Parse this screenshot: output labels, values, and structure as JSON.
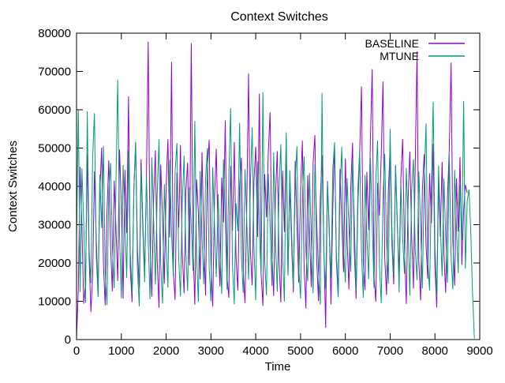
{
  "chart_data": {
    "type": "line",
    "title": "Context Switches",
    "xlabel": "Time",
    "ylabel": "Context Switches",
    "xlim": [
      0,
      9000
    ],
    "ylim": [
      0,
      80000
    ],
    "xticks": [
      0,
      1000,
      2000,
      3000,
      4000,
      5000,
      6000,
      7000,
      8000,
      9000
    ],
    "yticks": [
      0,
      10000,
      20000,
      30000,
      40000,
      50000,
      60000,
      70000,
      80000
    ],
    "grid": false,
    "legend_position": "top-right-inside",
    "series": [
      {
        "name": "BASELINE",
        "color": "#9400d3",
        "t0": 0,
        "dt": 40,
        "values": [
          500,
          13200,
          45100,
          29700,
          9400,
          14800,
          48300,
          21600,
          7200,
          16500,
          43900,
          26400,
          11800,
          38200,
          50100,
          19700,
          8900,
          33400,
          46800,
          24100,
          12600,
          41500,
          28900,
          15300,
          49600,
          35200,
          10700,
          44300,
          27800,
          63500,
          18400,
          9800,
          39600,
          51200,
          23700,
          13500,
          47100,
          30800,
          16900,
          42700,
          77800,
          25300,
          11200,
          36900,
          49400,
          20800,
          8300,
          45700,
          31500,
          14600,
          40200,
          52300,
          26700,
          72500,
          17800,
          10400,
          43600,
          29200,
          50800,
          22400,
          12100,
          38700,
          46200,
          19300,
          77400,
          24600,
          9100,
          41800,
          33200,
          15700,
          48900,
          27300,
          11500,
          44800,
          52100,
          20200,
          8600,
          37400,
          49800,
          25900,
          13900,
          42300,
          30600,
          57200,
          16200,
          10900,
          45300,
          28400,
          51600,
          21700,
          12800,
          39900,
          47500,
          18600,
          9500,
          35800,
          69500,
          23100,
          14200,
          41100,
          50400,
          26800,
          64200,
          17300,
          8800,
          43200,
          31900,
          48600,
          59300,
          22900,
          11400,
          37800,
          49200,
          20600,
          9700,
          44100,
          28100,
          52600,
          16800,
          40700,
          25500,
          12300,
          46700,
          30200,
          14900,
          38400,
          51900,
          19100,
          8100,
          42900,
          27600,
          13700,
          45900,
          53400,
          21200,
          10100,
          36300,
          48100,
          24400,
          3100,
          41400,
          29500,
          9200,
          34700,
          50900,
          22100,
          12500,
          44600,
          31100,
          17600,
          47300,
          26200,
          13100,
          39300,
          51400,
          23400,
          10600,
          35400,
          48700,
          66100,
          19900,
          12900,
          43800,
          28600,
          52800,
          70600,
          16400,
          9900,
          40900,
          32400,
          47900,
          67400,
          21400,
          11700,
          38900,
          50200,
          25100,
          14400,
          45500,
          29900,
          17100,
          42600,
          52400,
          23900,
          9300,
          36600,
          49100,
          27100,
          13300,
          44900,
          75200,
          20300,
          10200,
          39100,
          48400,
          24800,
          15900,
          43400,
          30400,
          51100,
          18900,
          8400,
          41600,
          26900,
          46400,
          22600,
          12200,
          37100,
          49900,
          72300,
          25700,
          14100,
          42100,
          28200,
          47700,
          19500,
          33700,
          40400,
          38300
        ]
      },
      {
        "name": "MTUNE",
        "color": "#009e73",
        "t0": 0,
        "dt": 40,
        "values": [
          26000,
          60200,
          12400,
          44700,
          30500,
          9600,
          59600,
          23800,
          14700,
          47200,
          59100,
          21900,
          11100,
          43100,
          29100,
          50600,
          17500,
          9000,
          38600,
          46100,
          24300,
          13400,
          41200,
          67800,
          27500,
          10800,
          45600,
          31400,
          16100,
          49300,
          22700,
          12000,
          39400,
          51700,
          18200,
          8700,
          44400,
          28700,
          15000,
          42400,
          26100,
          10500,
          47600,
          30900,
          14300,
          37700,
          52200,
          19600,
          9400,
          40600,
          25000,
          13600,
          46900,
          28000,
          16600,
          43700,
          51300,
          20900,
          11300,
          36100,
          48000,
          23200,
          12700,
          39800,
          30000,
          17900,
          57100,
          21100,
          9800,
          44000,
          27000,
          14500,
          41900,
          50000,
          18800,
          10000,
          45000,
          29400,
          16300,
          38000,
          23500,
          11900,
          47000,
          31700,
          13000,
          42800,
          60400,
          19400,
          9200,
          35600,
          28300,
          56600,
          22000,
          12200,
          44500,
          30300,
          15600,
          40000,
          55400,
          24900,
          10300,
          46500,
          27700,
          17000,
          64600,
          20500,
          11600,
          43300,
          29800,
          14000,
          48800,
          25400,
          12500,
          39000,
          51000,
          21300,
          9900,
          54100,
          16700,
          44200,
          28800,
          13800,
          41000,
          50500,
          19000,
          10700,
          37300,
          47800,
          23000,
          15200,
          43500,
          26600,
          12100,
          45800,
          31200,
          18000,
          9100,
          64400,
          22300,
          13200,
          40800,
          27900,
          16000,
          44600,
          51500,
          20000,
          11000,
          38500,
          50300,
          24000,
          14900,
          42200,
          29300,
          17700,
          46600,
          31000,
          12600,
          39700,
          49500,
          22800,
          10900,
          43000,
          27200,
          15800,
          47400,
          30700,
          13500,
          41700,
          52000,
          19800,
          9500,
          37000,
          48500,
          25600,
          14600,
          55000,
          28500,
          16900,
          45200,
          31600,
          12300,
          40300,
          26500,
          17200,
          44800,
          29600,
          11500,
          38800,
          47100,
          23600,
          15500,
          43900,
          28900,
          13300,
          41300,
          56400,
          20700,
          12800,
          39500,
          62100,
          24500,
          11200,
          45400,
          30100,
          16500,
          42000,
          27400,
          14800,
          48200,
          21500,
          13100,
          44300,
          29000,
          17400,
          40500,
          25800,
          62300,
          18500,
          36200,
          39200,
          28400,
          12000,
          300
        ]
      }
    ]
  }
}
